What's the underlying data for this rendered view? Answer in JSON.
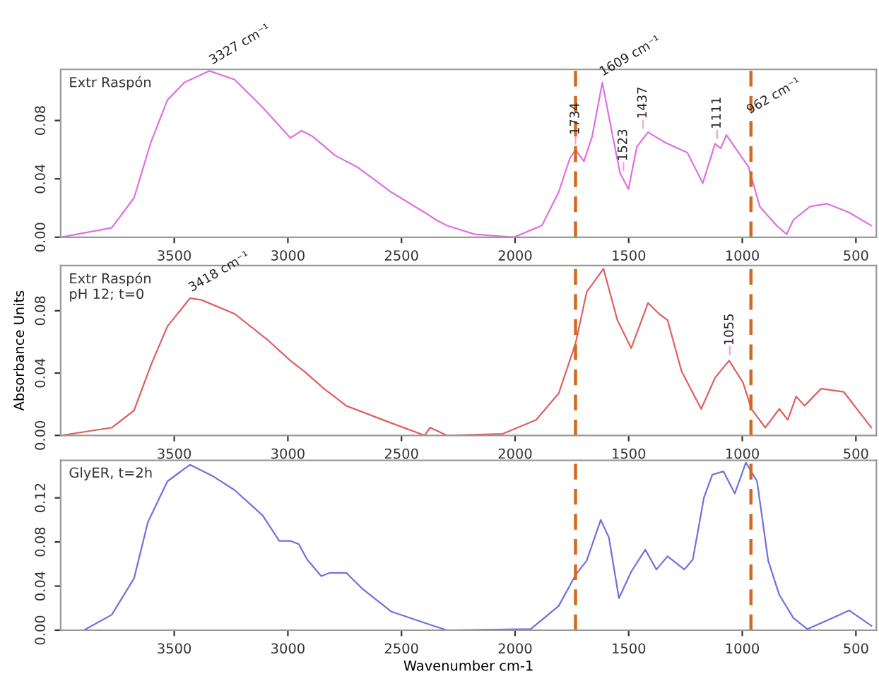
{
  "chart_data": [
    {
      "type": "line",
      "title": "Extr Raspón",
      "xlim": [
        4000,
        410
      ],
      "xticks": [
        3500,
        3000,
        2500,
        2000,
        1500,
        1000,
        500
      ],
      "ylim": [
        0,
        0.115
      ],
      "yticks": [
        {
          "value": 0,
          "label": "0.00"
        },
        {
          "value": 0.04,
          "label": "0.04"
        },
        {
          "value": 0.08,
          "label": "0.08"
        }
      ],
      "grid": false,
      "legend": false,
      "series": [
        {
          "color": "#e070e0",
          "x": [
            4000,
            3775,
            3677,
            3603,
            3530,
            3456,
            3345,
            3234,
            3111,
            2989,
            2940,
            2890,
            2792,
            2693,
            2546,
            2398,
            2349,
            2300,
            2177,
            2005,
            1882,
            1808,
            1759,
            1734,
            1697,
            1661,
            1616,
            1575,
            1538,
            1501,
            1464,
            1415,
            1341,
            1242,
            1174,
            1120,
            1095,
            1070,
            972,
            923,
            849,
            805,
            775,
            702,
            628,
            530,
            432
          ],
          "values": [
            0,
            0.0065,
            0.027,
            0.065,
            0.094,
            0.106,
            0.114,
            0.108,
            0.089,
            0.068,
            0.073,
            0.069,
            0.056,
            0.048,
            0.031,
            0.017,
            0.012,
            0.008,
            0.002,
            0,
            0.008,
            0.031,
            0.054,
            0.06,
            0.052,
            0.069,
            0.106,
            0.073,
            0.044,
            0.033,
            0.062,
            0.072,
            0.065,
            0.058,
            0.037,
            0.064,
            0.061,
            0.07,
            0.048,
            0.021,
            0.008,
            0.002,
            0.012,
            0.021,
            0.023,
            0.017,
            0.008
          ]
        }
      ],
      "ref_lines": [
        {
          "axis": "x",
          "value": 1734,
          "color": "#d2691e",
          "line_style": "dashed"
        },
        {
          "axis": "x",
          "value": 962,
          "color": "#d2691e",
          "line_style": "dashed"
        }
      ],
      "annotations": [
        {
          "text": "3327 cm⁻¹",
          "x": 3327,
          "y": 0.114
        },
        {
          "text": "1609 cm⁻¹",
          "x": 1609,
          "y": 0.106
        },
        {
          "text": "1734",
          "x": 1734,
          "y": 0.062
        },
        {
          "text": "1523",
          "x": 1523,
          "y": 0.044
        },
        {
          "text": "1437",
          "x": 1437,
          "y": 0.073
        },
        {
          "text": "1111",
          "x": 1111,
          "y": 0.066
        },
        {
          "text": "962 cm⁻¹",
          "x": 962,
          "y": 0.08
        }
      ]
    },
    {
      "type": "line",
      "title": "Extr Raspón\npH 12; t=0",
      "ylabel": "Absorbance Units",
      "xlim": [
        4000,
        410
      ],
      "xticks": [
        3500,
        3000,
        2500,
        2000,
        1500,
        1000,
        500
      ],
      "ylim": [
        0,
        0.109
      ],
      "yticks": [
        {
          "value": 0,
          "label": "0.00"
        },
        {
          "value": 0.04,
          "label": "0.04"
        },
        {
          "value": 0.08,
          "label": "0.08"
        }
      ],
      "grid": false,
      "legend": false,
      "series": [
        {
          "color": "#e06060",
          "x": [
            3997,
            3775,
            3677,
            3603,
            3530,
            3431,
            3382,
            3234,
            3087,
            2989,
            2927,
            2841,
            2743,
            2546,
            2398,
            2374,
            2300,
            2054,
            1907,
            1808,
            1734,
            1685,
            1611,
            1550,
            1489,
            1415,
            1366,
            1329,
            1267,
            1181,
            1120,
            1058,
            997,
            960,
            899,
            837,
            800,
            763,
            726,
            653,
            554,
            432
          ],
          "values": [
            0,
            0.005,
            0.016,
            0.045,
            0.07,
            0.088,
            0.087,
            0.078,
            0.061,
            0.048,
            0.041,
            0.03,
            0.019,
            0.008,
            0,
            0.005,
            0,
            0.001,
            0.01,
            0.027,
            0.059,
            0.092,
            0.107,
            0.074,
            0.056,
            0.085,
            0.078,
            0.074,
            0.041,
            0.017,
            0.037,
            0.048,
            0.034,
            0.017,
            0.005,
            0.017,
            0.01,
            0.025,
            0.019,
            0.03,
            0.028,
            0.005
          ]
        }
      ],
      "ref_lines": [
        {
          "axis": "x",
          "value": 1734,
          "color": "#d2691e",
          "line_style": "dashed"
        },
        {
          "axis": "x",
          "value": 962,
          "color": "#d2691e",
          "line_style": "dashed"
        }
      ],
      "annotations": [
        {
          "text": "3418 cm⁻¹",
          "x": 3418,
          "y": 0.088
        },
        {
          "text": "1055",
          "x": 1055,
          "y": 0.05
        }
      ]
    },
    {
      "type": "line",
      "title": "GlyER, t=2h",
      "xlabel": "Wavenumber cm-1",
      "xlim": [
        4000,
        410
      ],
      "xticks": [
        3500,
        3000,
        2500,
        2000,
        1500,
        1000,
        500
      ],
      "ylim": [
        0,
        0.154
      ],
      "yticks": [
        {
          "value": 0,
          "label": "0.00"
        },
        {
          "value": 0.04,
          "label": "0.04"
        },
        {
          "value": 0.08,
          "label": "0.08"
        },
        {
          "value": 0.12,
          "label": "0.12"
        }
      ],
      "grid": false,
      "legend": false,
      "series": [
        {
          "color": "#7070e0",
          "x": [
            3997,
            3898,
            3775,
            3677,
            3616,
            3530,
            3431,
            3333,
            3234,
            3111,
            3038,
            2989,
            2952,
            2915,
            2853,
            2816,
            2743,
            2669,
            2546,
            2374,
            2300,
            1931,
            1808,
            1734,
            1685,
            1623,
            1587,
            1543,
            1489,
            1427,
            1378,
            1329,
            1255,
            1218,
            1169,
            1132,
            1083,
            1033,
            984,
            935,
            886,
            837,
            775,
            714,
            603,
            530,
            432
          ],
          "values": [
            0,
            0,
            0.014,
            0.047,
            0.098,
            0.135,
            0.15,
            0.14,
            0.127,
            0.104,
            0.081,
            0.081,
            0.078,
            0.064,
            0.049,
            0.052,
            0.052,
            0.037,
            0.017,
            0.005,
            0,
            0.001,
            0.022,
            0.05,
            0.063,
            0.1,
            0.084,
            0.029,
            0.053,
            0.073,
            0.055,
            0.067,
            0.055,
            0.064,
            0.12,
            0.141,
            0.144,
            0.124,
            0.152,
            0.135,
            0.063,
            0.032,
            0.011,
            0.001,
            0.011,
            0.018,
            0.004
          ]
        }
      ],
      "ref_lines": [
        {
          "axis": "x",
          "value": 1734,
          "color": "#d2691e",
          "line_style": "dashed"
        },
        {
          "axis": "x",
          "value": 962,
          "color": "#d2691e",
          "line_style": "dashed"
        }
      ]
    }
  ]
}
